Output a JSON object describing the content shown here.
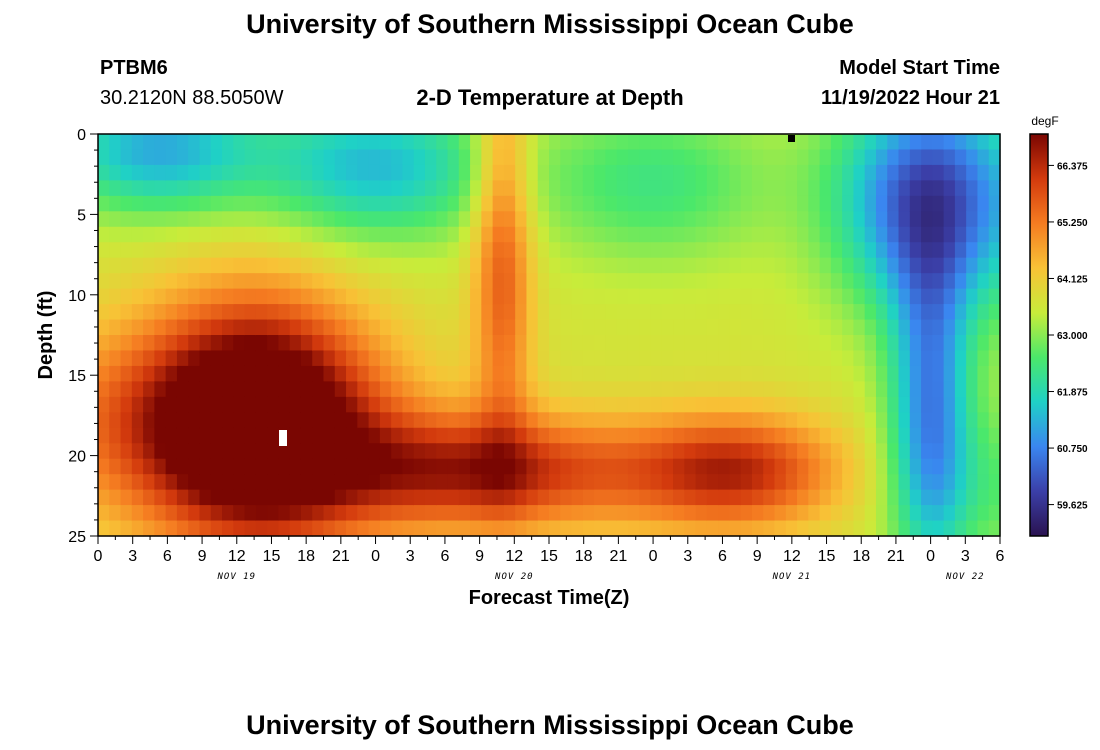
{
  "header": {
    "title": "University of Southern Mississippi Ocean Cube",
    "station": "PTBM6",
    "coords": "30.2120N  88.5050W",
    "subtitle": "2-D Temperature at Depth",
    "model_start_label": "Model Start Time",
    "model_start_value": "11/19/2022 Hour 21"
  },
  "footer": {
    "title": "University of Southern Mississippi Ocean Cube"
  },
  "colors": {
    "colormap": [
      "#2a1350",
      "#3b3fa8",
      "#3a86f0",
      "#1fd1c6",
      "#4be86a",
      "#c8ec3a",
      "#f8c236",
      "#f57c21",
      "#d33a0d",
      "#7a0602"
    ]
  },
  "chart_data": {
    "type": "heatmap",
    "title": "2-D Temperature at Depth",
    "xlabel": "Forecast Time(Z)",
    "ylabel": "Depth (ft)",
    "ylim": [
      0,
      25
    ],
    "y_reversed": true,
    "y_ticks": [
      0,
      5,
      10,
      15,
      20,
      25
    ],
    "x_tick_labels": [
      "0",
      "3",
      "6",
      "9",
      "12",
      "15",
      "18",
      "21",
      "0",
      "3",
      "6",
      "9",
      "12",
      "15",
      "18",
      "21",
      "0",
      "3",
      "6",
      "9",
      "12",
      "15",
      "18",
      "21",
      "0",
      "3",
      "6"
    ],
    "date_labels": [
      {
        "label": "NOV 19",
        "tick_index": 4
      },
      {
        "label": "NOV 20",
        "tick_index": 12
      },
      {
        "label": "NOV 21",
        "tick_index": 20
      },
      {
        "label": "NOV 22",
        "tick_index": 25
      }
    ],
    "colorbar": {
      "unit": "degF",
      "min": 59.0,
      "max": 67.0,
      "ticks": [
        "66.375",
        "65.250",
        "64.125",
        "63.000",
        "61.875",
        "60.750",
        "59.625"
      ]
    },
    "grid": false,
    "legend": "right (colorbar)"
  }
}
